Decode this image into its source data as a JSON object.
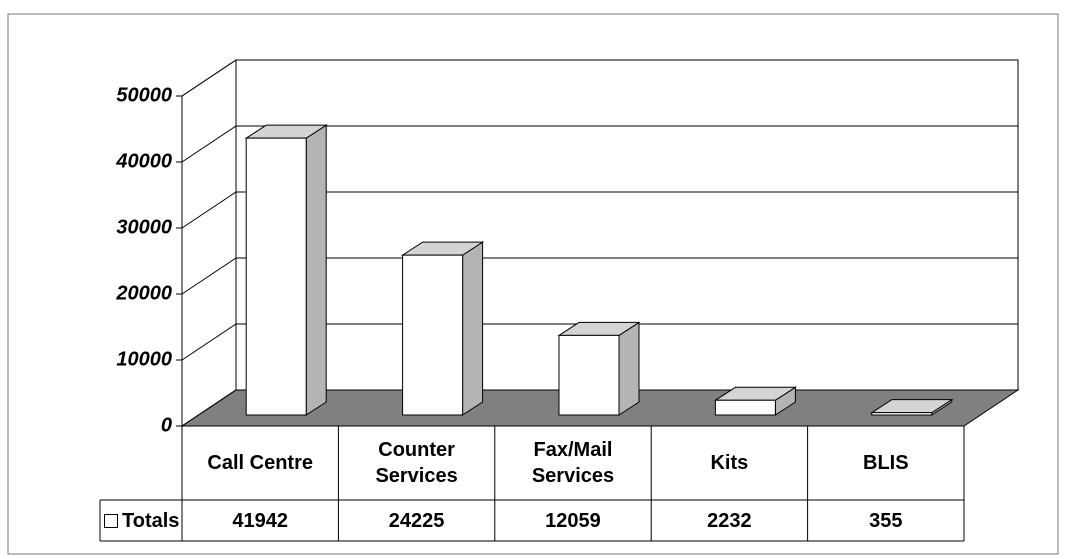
{
  "chart_data": {
    "type": "bar3d",
    "categories": [
      "Call Centre",
      "Counter Services",
      "Fax/Mail Services",
      "Kits",
      "BLIS"
    ],
    "series": [
      {
        "name": "Totals",
        "color": "#ffffff",
        "values": [
          41942,
          24225,
          12059,
          2232,
          355
        ]
      }
    ],
    "ylim": [
      0,
      50000
    ],
    "yticks": [
      0,
      10000,
      20000,
      30000,
      40000,
      50000
    ],
    "grid": true
  }
}
